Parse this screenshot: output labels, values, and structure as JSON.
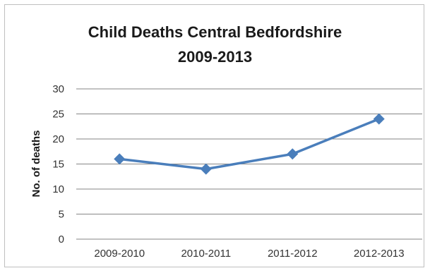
{
  "chart_data": {
    "type": "line",
    "title": "Child Deaths Central Bedfordshire",
    "subtitle": "2009-2013",
    "xlabel": "",
    "ylabel": "No. of deaths",
    "categories": [
      "2009-2010",
      "2010-2011",
      "2011-2012",
      "2012-2013"
    ],
    "series": [
      {
        "values": [
          16,
          14,
          17,
          24
        ]
      }
    ],
    "ylim": [
      0,
      30
    ],
    "yticks": [
      0,
      5,
      10,
      15,
      20,
      25,
      30
    ],
    "grid": true,
    "legend": "none",
    "colors": {
      "line": "#4a7ebb",
      "grid": "#868686"
    }
  }
}
